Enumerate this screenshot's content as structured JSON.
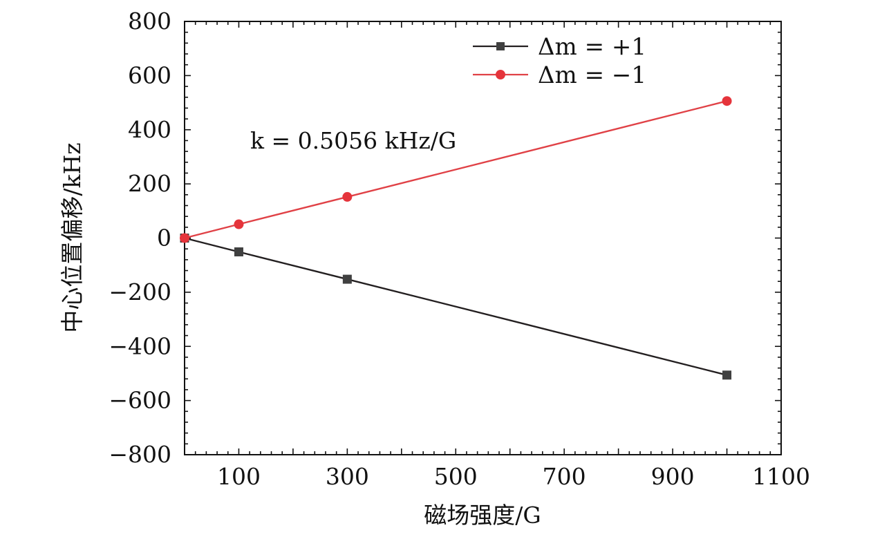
{
  "chart_data": {
    "type": "line",
    "title": "",
    "xlabel": "磁场强度/G",
    "ylabel": "中心位置偏移/kHz",
    "xlim": [
      0,
      1100
    ],
    "ylim": [
      -800,
      800
    ],
    "x_ticks": [
      100,
      300,
      500,
      700,
      900,
      1100
    ],
    "y_ticks": [
      800,
      600,
      400,
      200,
      0,
      -200,
      -400,
      -600,
      -800
    ],
    "y_tick_labels": [
      "800",
      "600",
      "400",
      "200",
      "0",
      "−200",
      "−400",
      "−600",
      "−800"
    ],
    "grid": false,
    "legend_position": "top-right",
    "annotation": "k = 0.5056 kHz/G",
    "series": [
      {
        "name": "Δm = +1",
        "color": "#231f20",
        "marker": "square",
        "marker_color": "#404040",
        "x": [
          0,
          100,
          300,
          1000
        ],
        "y": [
          0,
          -51,
          -152,
          -506
        ]
      },
      {
        "name": "Δm = −1",
        "color": "#e04146",
        "marker": "circle",
        "marker_color": "#e5343b",
        "x": [
          0,
          100,
          300,
          1000
        ],
        "y": [
          0,
          51,
          152,
          506
        ]
      }
    ]
  }
}
